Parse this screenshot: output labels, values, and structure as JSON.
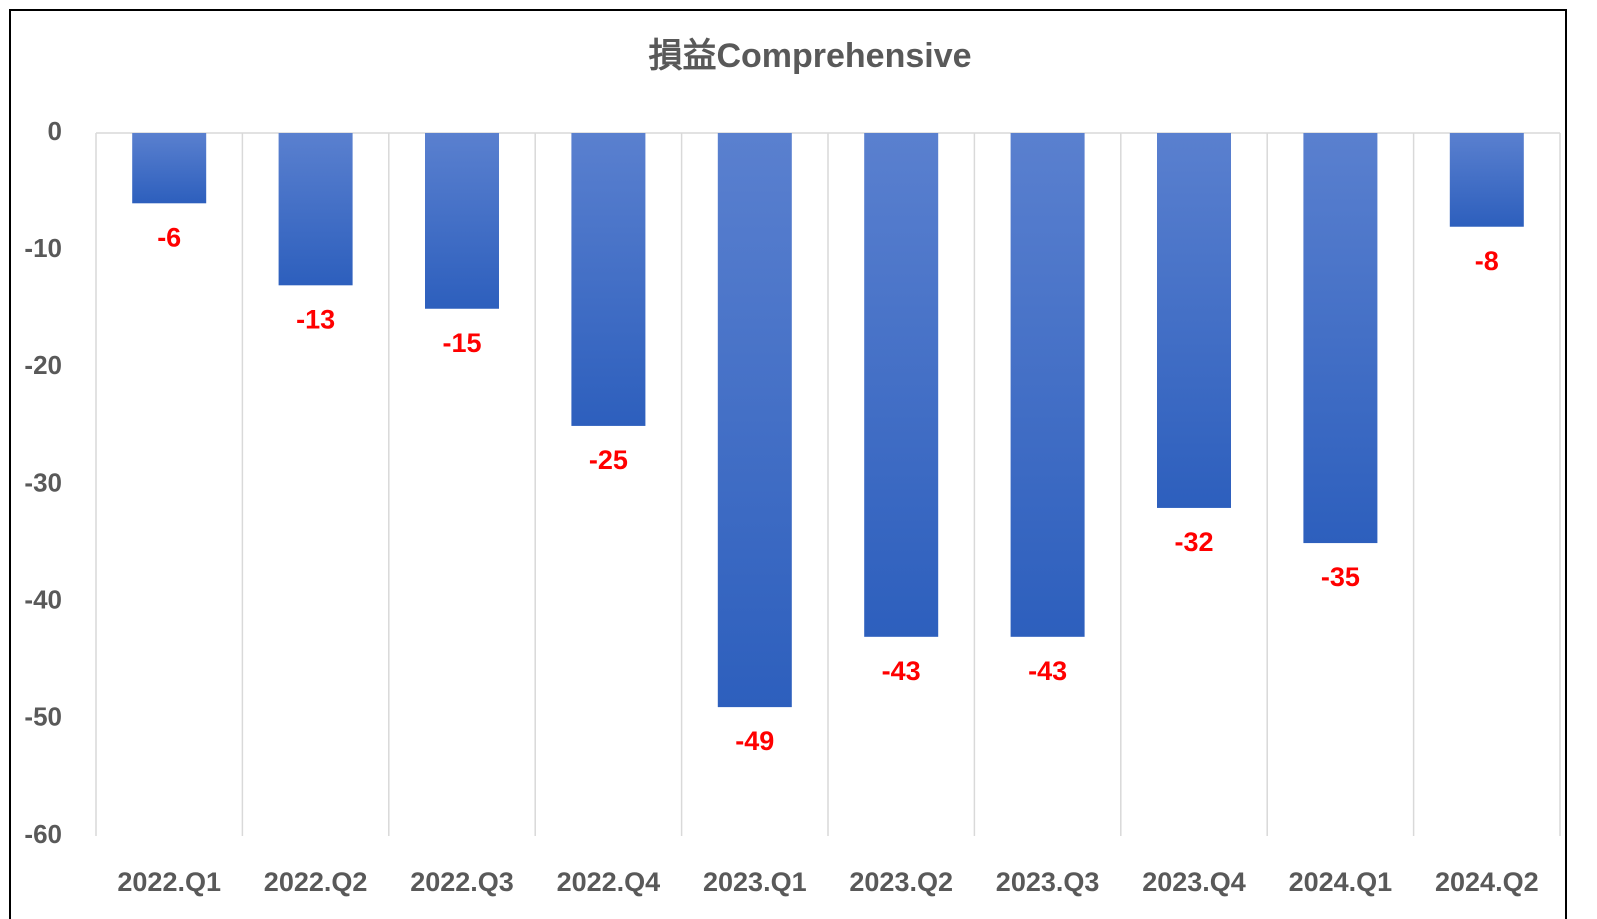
{
  "chart_data": {
    "type": "bar",
    "title": "損益Comprehensive",
    "categories": [
      "2022.Q1",
      "2022.Q2",
      "2022.Q3",
      "2022.Q4",
      "2023.Q1",
      "2023.Q2",
      "2023.Q3",
      "2023.Q4",
      "2024.Q1",
      "2024.Q2"
    ],
    "values": [
      -6,
      -13,
      -15,
      -25,
      -49,
      -43,
      -43,
      -32,
      -35,
      -8
    ],
    "color": "#4472c4",
    "label_color": "#ff0000",
    "ylim": [
      -60,
      0
    ],
    "yticks": [
      0,
      -10,
      -20,
      -30,
      -40,
      -50,
      -60
    ],
    "grid": false
  }
}
